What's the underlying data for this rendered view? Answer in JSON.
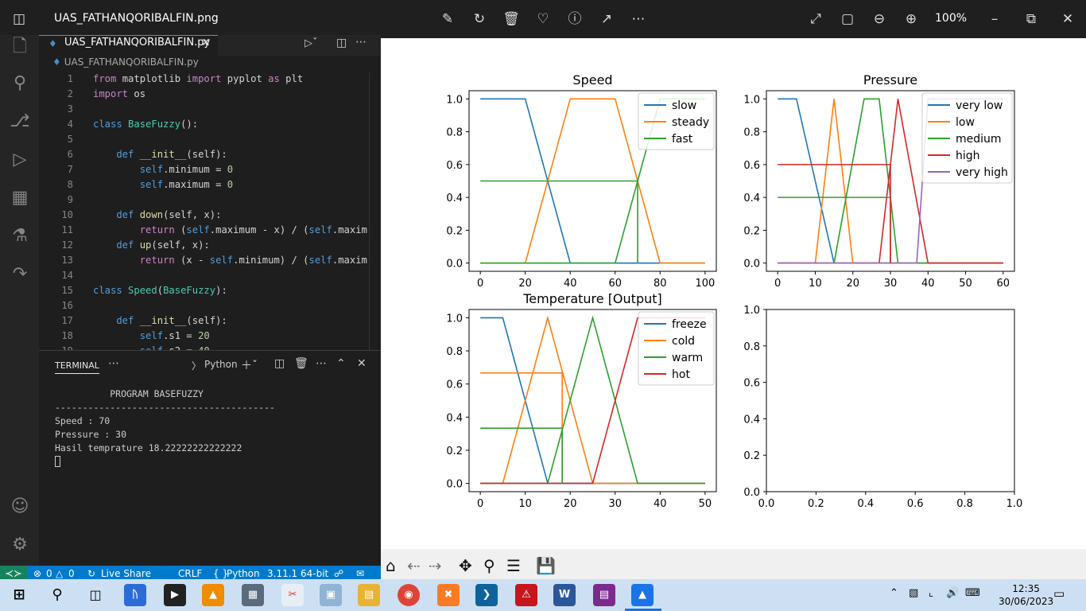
{
  "photos": {
    "filename": "UAS_FATHANQORIBALFIN.png",
    "zoom": "100%"
  },
  "vscode": {
    "tab_label": "UAS_FATHANQORIBALFIN.py",
    "breadcrumb": "UAS_FATHANQORIBALFIN.py",
    "code_lines": [
      {
        "n": "1",
        "segs": [
          {
            "t": "from ",
            "c": "kw2"
          },
          {
            "t": "matplotlib ",
            "c": "tx"
          },
          {
            "t": "import ",
            "c": "kw2"
          },
          {
            "t": "pyplot ",
            "c": "tx"
          },
          {
            "t": "as ",
            "c": "kw2"
          },
          {
            "t": "plt",
            "c": "tx"
          }
        ]
      },
      {
        "n": "2",
        "segs": [
          {
            "t": "import ",
            "c": "kw2"
          },
          {
            "t": "os",
            "c": "tx"
          }
        ]
      },
      {
        "n": "3",
        "segs": []
      },
      {
        "n": "4",
        "segs": [
          {
            "t": "class ",
            "c": "kw"
          },
          {
            "t": "BaseFuzzy",
            "c": "cls"
          },
          {
            "t": "():",
            "c": "tx"
          }
        ]
      },
      {
        "n": "5",
        "segs": []
      },
      {
        "n": "6",
        "segs": [
          {
            "t": "    def ",
            "c": "kw"
          },
          {
            "t": "__init__",
            "c": "fn"
          },
          {
            "t": "(self):",
            "c": "tx"
          }
        ]
      },
      {
        "n": "7",
        "segs": [
          {
            "t": "        self",
            "c": "kw"
          },
          {
            "t": ".minimum = ",
            "c": "tx"
          },
          {
            "t": "0",
            "c": "num"
          }
        ]
      },
      {
        "n": "8",
        "segs": [
          {
            "t": "        self",
            "c": "kw"
          },
          {
            "t": ".maximum = ",
            "c": "tx"
          },
          {
            "t": "0",
            "c": "num"
          }
        ]
      },
      {
        "n": "9",
        "segs": []
      },
      {
        "n": "10",
        "segs": [
          {
            "t": "    def ",
            "c": "kw"
          },
          {
            "t": "down",
            "c": "fn"
          },
          {
            "t": "(self, x):",
            "c": "tx"
          }
        ]
      },
      {
        "n": "11",
        "segs": [
          {
            "t": "        return ",
            "c": "kw2"
          },
          {
            "t": "(",
            "c": "tx"
          },
          {
            "t": "self",
            "c": "kw"
          },
          {
            "t": ".maximum - x) / (",
            "c": "tx"
          },
          {
            "t": "self",
            "c": "kw"
          },
          {
            "t": ".maxim",
            "c": "tx"
          }
        ]
      },
      {
        "n": "12",
        "segs": [
          {
            "t": "    def ",
            "c": "kw"
          },
          {
            "t": "up",
            "c": "fn"
          },
          {
            "t": "(self, x):",
            "c": "tx"
          }
        ]
      },
      {
        "n": "13",
        "segs": [
          {
            "t": "        return ",
            "c": "kw2"
          },
          {
            "t": "(x - ",
            "c": "tx"
          },
          {
            "t": "self",
            "c": "kw"
          },
          {
            "t": ".minimum) / (",
            "c": "tx"
          },
          {
            "t": "self",
            "c": "kw"
          },
          {
            "t": ".maxim",
            "c": "tx"
          }
        ]
      },
      {
        "n": "14",
        "segs": []
      },
      {
        "n": "15",
        "segs": [
          {
            "t": "class ",
            "c": "kw"
          },
          {
            "t": "Speed",
            "c": "cls"
          },
          {
            "t": "(",
            "c": "tx"
          },
          {
            "t": "BaseFuzzy",
            "c": "cls"
          },
          {
            "t": "):",
            "c": "tx"
          }
        ]
      },
      {
        "n": "16",
        "segs": []
      },
      {
        "n": "17",
        "segs": [
          {
            "t": "    def ",
            "c": "kw"
          },
          {
            "t": "__init__",
            "c": "fn"
          },
          {
            "t": "(self):",
            "c": "tx"
          }
        ]
      },
      {
        "n": "18",
        "segs": [
          {
            "t": "        self",
            "c": "kw"
          },
          {
            "t": ".s1 = ",
            "c": "tx"
          },
          {
            "t": "20",
            "c": "num"
          }
        ]
      },
      {
        "n": "19",
        "segs": [
          {
            "t": "        self",
            "c": "kw"
          },
          {
            "t": ".s2 = ",
            "c": "tx"
          },
          {
            "t": "40",
            "c": "num"
          }
        ]
      }
    ],
    "terminal": {
      "tab": "TERMINAL",
      "shell": "Python",
      "output": "          PROGRAM BASEFUZZY\n----------------------------------------\nSpeed : 70\nPressure : 30\nHasil temprature 18.22222222222222"
    },
    "status": {
      "errors": "0",
      "warnings": "0",
      "live_share": "Live Share",
      "eol": "CRLF",
      "language": "Python",
      "interpreter": "3.11.1 64-bit"
    }
  },
  "taskbar": {
    "time": "12:35",
    "date": "30/06/2023"
  },
  "chart_data": [
    {
      "type": "line",
      "title": "Speed",
      "xlim": [
        -5,
        105
      ],
      "ylim": [
        -0.05,
        1.05
      ],
      "xticks": [
        "0",
        "20",
        "40",
        "60",
        "80",
        "100"
      ],
      "yticks": [
        "0.0",
        "0.2",
        "0.4",
        "0.6",
        "0.8",
        "1.0"
      ],
      "legend_position": "upper right",
      "series": [
        {
          "name": "slow",
          "color": "#1f77b4",
          "x": [
            0,
            20,
            40,
            100
          ],
          "y": [
            1,
            1,
            0,
            0
          ]
        },
        {
          "name": "steady",
          "color": "#ff7f0e",
          "x": [
            0,
            20,
            40,
            60,
            80,
            100
          ],
          "y": [
            0,
            0,
            1,
            1,
            0,
            0
          ]
        },
        {
          "name": "fast",
          "color": "#2ca02c",
          "x": [
            0,
            60,
            80,
            100
          ],
          "y": [
            0,
            0,
            1,
            1
          ]
        },
        {
          "name": "",
          "color": "#2ca02c",
          "x": [
            0,
            70,
            70
          ],
          "y": [
            0.5,
            0.5,
            0
          ]
        }
      ]
    },
    {
      "type": "line",
      "title": "Pressure",
      "xlim": [
        -3,
        63
      ],
      "ylim": [
        -0.05,
        1.05
      ],
      "xticks": [
        "0",
        "10",
        "20",
        "30",
        "40",
        "50",
        "60"
      ],
      "yticks": [
        "0.0",
        "0.2",
        "0.4",
        "0.6",
        "0.8",
        "1.0"
      ],
      "legend_position": "upper right",
      "series": [
        {
          "name": "very low",
          "color": "#1f77b4",
          "x": [
            0,
            5,
            15,
            60
          ],
          "y": [
            1,
            1,
            0,
            0
          ]
        },
        {
          "name": "low",
          "color": "#ff7f0e",
          "x": [
            0,
            10,
            15,
            20,
            60
          ],
          "y": [
            0,
            0,
            1,
            0,
            0
          ]
        },
        {
          "name": "medium",
          "color": "#2ca02c",
          "x": [
            0,
            15,
            23,
            27,
            32,
            60
          ],
          "y": [
            0,
            0,
            1,
            1,
            0,
            0
          ]
        },
        {
          "name": "high",
          "color": "#d62728",
          "x": [
            0,
            27,
            32,
            40,
            60
          ],
          "y": [
            0,
            0,
            1,
            0,
            0
          ]
        },
        {
          "name": "very high",
          "color": "#9467bd",
          "x": [
            0,
            37,
            40,
            60
          ],
          "y": [
            0,
            0,
            1,
            1
          ]
        },
        {
          "name": "",
          "color": "#2ca02c",
          "x": [
            0,
            30,
            30
          ],
          "y": [
            0.4,
            0.4,
            0
          ]
        },
        {
          "name": "",
          "color": "#d62728",
          "x": [
            0,
            30,
            30
          ],
          "y": [
            0.6,
            0.6,
            0
          ]
        }
      ]
    },
    {
      "type": "line",
      "title": "Temperature [Output]",
      "xlim": [
        -2.5,
        52.5
      ],
      "ylim": [
        -0.05,
        1.05
      ],
      "xticks": [
        "0",
        "10",
        "20",
        "30",
        "40",
        "50"
      ],
      "yticks": [
        "0.0",
        "0.2",
        "0.4",
        "0.6",
        "0.8",
        "1.0"
      ],
      "legend_position": "upper right",
      "series": [
        {
          "name": "freeze",
          "color": "#1f77b4",
          "x": [
            0,
            5,
            15,
            50
          ],
          "y": [
            1,
            1,
            0,
            0
          ]
        },
        {
          "name": "cold",
          "color": "#ff7f0e",
          "x": [
            0,
            5,
            15,
            25,
            50
          ],
          "y": [
            0,
            0,
            1,
            0,
            0
          ]
        },
        {
          "name": "warm",
          "color": "#2ca02c",
          "x": [
            0,
            15,
            25,
            35,
            50
          ],
          "y": [
            0,
            0,
            1,
            0,
            0
          ]
        },
        {
          "name": "hot",
          "color": "#d62728",
          "x": [
            0,
            25,
            35,
            50
          ],
          "y": [
            0,
            0,
            1,
            1
          ]
        },
        {
          "name": "",
          "color": "#ff7f0e",
          "x": [
            0,
            18.2222,
            18.2222
          ],
          "y": [
            0.6667,
            0.6667,
            0
          ]
        },
        {
          "name": "",
          "color": "#2ca02c",
          "x": [
            0,
            18.2222,
            18.2222
          ],
          "y": [
            0.3333,
            0.3333,
            0
          ]
        }
      ]
    },
    {
      "type": "line",
      "title": "",
      "xlim": [
        0,
        1
      ],
      "ylim": [
        0,
        1
      ],
      "xticks": [
        "0.0",
        "0.2",
        "0.4",
        "0.6",
        "0.8",
        "1.0"
      ],
      "yticks": [
        "0.0",
        "0.2",
        "0.4",
        "0.6",
        "0.8",
        "1.0"
      ],
      "series": []
    }
  ]
}
